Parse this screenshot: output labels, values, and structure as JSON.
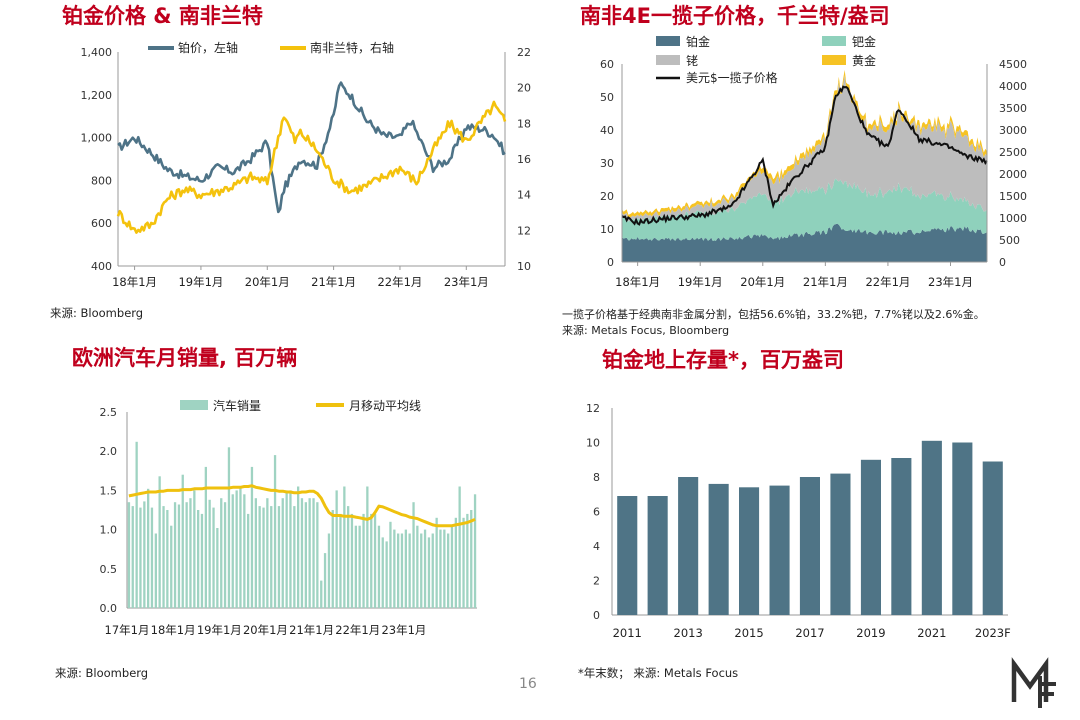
{
  "page_number": "16",
  "logo": "MF",
  "colors": {
    "title_red": "#c0001d",
    "platinum_blue": "#4e7387",
    "rand_yellow": "#f4c20d",
    "palladium_teal": "#8fd1bc",
    "rhodium_gray": "#bdbdbd",
    "gold_yellow": "#f6c324",
    "basket_black": "#111111",
    "sales_bar": "#9fd3c2",
    "ma_line": "#efc10e",
    "stock_bar": "#4f7486"
  },
  "panels": {
    "tl": {
      "title": "铂金价格 & 南非兰特",
      "source": "来源: Bloomberg",
      "legend": [
        {
          "label": "铂价，左轴",
          "color": "#4e7387"
        },
        {
          "label": "南非兰特，右轴",
          "color": "#f4c20d"
        }
      ],
      "x_ticks": [
        "18年1月",
        "19年1月",
        "20年1月",
        "21年1月",
        "22年1月",
        "23年1月"
      ],
      "y_left_ticks": [
        "1,400",
        "1,200",
        "1,000",
        "800",
        "600",
        "400"
      ],
      "y_right_ticks": [
        "22",
        "20",
        "18",
        "16",
        "14",
        "12",
        "10"
      ]
    },
    "tr": {
      "title": "南非4E一揽子价格，千兰特/盎司",
      "note_line1": "一揽子价格基于经典南非金属分割，包括56.6%铂，33.2%钯，7.7%铑以及2.6%金。",
      "note_line2": "来源: Metals Focus, Bloomberg",
      "legend": [
        {
          "label": "铂金",
          "color": "#4e7387"
        },
        {
          "label": "钯金",
          "color": "#8fd1bc"
        },
        {
          "label": "铑",
          "color": "#bdbdbd"
        },
        {
          "label": "黄金",
          "color": "#f6c324"
        },
        {
          "label": "美元$一揽子价格",
          "color": "#111111"
        }
      ],
      "x_ticks": [
        "18年1月",
        "19年1月",
        "20年1月",
        "21年1月",
        "22年1月",
        "23年1月"
      ],
      "y_left_ticks": [
        "60",
        "50",
        "40",
        "30",
        "20",
        "10",
        "0"
      ],
      "y_right_ticks": [
        "4500",
        "4000",
        "3500",
        "3000",
        "2500",
        "2000",
        "1500",
        "1000",
        "500",
        "0"
      ]
    },
    "bl": {
      "title": "欧洲汽车月销量, 百万辆",
      "source": "来源: Bloomberg",
      "legend": [
        {
          "label": "汽车销量",
          "color": "#9fd3c2"
        },
        {
          "label": "月移动平均线",
          "color": "#efc10e"
        }
      ],
      "x_ticks": [
        "17年1月",
        "18年1月",
        "19年1月",
        "20年1月",
        "21年1月",
        "22年1月",
        "23年1月"
      ],
      "y_ticks": [
        "2.5",
        "2.0",
        "1.5",
        "1.0",
        "0.5",
        "0.0"
      ]
    },
    "br": {
      "title": "铂金地上存量*，百万盎司",
      "source": "*年末数；  来源: Metals Focus",
      "x_ticks": [
        "2011",
        "2013",
        "2015",
        "2017",
        "2019",
        "2021",
        "2023F"
      ],
      "y_ticks": [
        "12",
        "10",
        "8",
        "6",
        "4",
        "2",
        "0"
      ]
    }
  },
  "chart_data": [
    {
      "id": "tl",
      "type": "line",
      "title": "铂金价格 & 南非兰特",
      "x_range": [
        "2017-10",
        "2023-08"
      ],
      "ylim_left": [
        400,
        1400
      ],
      "ylim_right": [
        10,
        22
      ],
      "series": [
        {
          "name": "铂价，左轴",
          "axis": "left",
          "x": [
            "2017-10",
            "2018-01",
            "2018-04",
            "2018-07",
            "2018-10",
            "2019-01",
            "2019-04",
            "2019-07",
            "2019-10",
            "2020-01",
            "2020-03",
            "2020-04",
            "2020-07",
            "2020-10",
            "2021-01",
            "2021-02",
            "2021-04",
            "2021-07",
            "2021-10",
            "2022-01",
            "2022-03",
            "2022-07",
            "2022-10",
            "2023-01",
            "2023-04",
            "2023-06",
            "2023-08"
          ],
          "values": [
            950,
            1000,
            930,
            850,
            820,
            800,
            860,
            840,
            900,
            980,
            640,
            760,
            900,
            870,
            1100,
            1250,
            1200,
            1080,
            1010,
            1000,
            1080,
            860,
            900,
            1050,
            1040,
            1010,
            930
          ]
        },
        {
          "name": "南非兰特，右轴",
          "axis": "right",
          "x": [
            "2017-10",
            "2018-01",
            "2018-04",
            "2018-07",
            "2018-10",
            "2019-01",
            "2019-04",
            "2019-07",
            "2019-10",
            "2020-01",
            "2020-04",
            "2020-06",
            "2020-07",
            "2020-10",
            "2021-01",
            "2021-04",
            "2021-07",
            "2021-10",
            "2022-01",
            "2022-04",
            "2022-07",
            "2022-10",
            "2023-01",
            "2023-04",
            "2023-06",
            "2023-08"
          ],
          "values": [
            13.0,
            12.0,
            12.3,
            13.8,
            14.3,
            14.0,
            14.2,
            14.5,
            15.0,
            14.7,
            18.5,
            17.0,
            17.5,
            16.5,
            14.9,
            14.2,
            14.5,
            15.0,
            15.5,
            14.7,
            16.5,
            18.0,
            17.0,
            18.2,
            19.0,
            18.1
          ]
        }
      ]
    },
    {
      "id": "tr",
      "type": "area",
      "title": "南非4E一揽子价格，千兰特/盎司",
      "x": [
        "2017-10",
        "2018-01",
        "2018-07",
        "2019-01",
        "2019-07",
        "2020-01",
        "2020-03",
        "2020-07",
        "2021-01",
        "2021-03",
        "2021-05",
        "2021-09",
        "2022-01",
        "2022-03",
        "2022-07",
        "2023-01",
        "2023-04",
        "2023-08"
      ],
      "ylim_left": [
        0,
        60
      ],
      "ylim_right": [
        0,
        4500
      ],
      "series": [
        {
          "name": "铂金",
          "stack": true,
          "values": [
            7,
            7,
            7,
            7,
            7,
            8,
            7,
            8,
            9,
            11,
            10,
            9,
            9,
            9,
            9,
            10,
            10,
            9
          ]
        },
        {
          "name": "钯金",
          "stack": true,
          "values": [
            6,
            6,
            7,
            8,
            9,
            13,
            11,
            13,
            13,
            13,
            14,
            12,
            12,
            14,
            11,
            10,
            8,
            7
          ]
        },
        {
          "name": "铑",
          "stack": true,
          "values": [
            1,
            1,
            1.5,
            2,
            3,
            7,
            6,
            8,
            15,
            27,
            30,
            20,
            19,
            22,
            20,
            20,
            20,
            16
          ]
        },
        {
          "name": "黄金",
          "stack": true,
          "values": [
            1,
            1,
            1,
            1,
            1,
            1.5,
            1.5,
            1.5,
            1.5,
            1.5,
            1.5,
            1.5,
            1.5,
            1.5,
            1.5,
            1.5,
            1.5,
            1.5
          ]
        },
        {
          "name": "美元$一揽子价格",
          "axis": "right",
          "values": [
            1000,
            900,
            1000,
            1050,
            1250,
            2300,
            1300,
            1900,
            2600,
            3800,
            4000,
            2900,
            2600,
            3500,
            2800,
            2600,
            2400,
            2300
          ]
        }
      ]
    },
    {
      "id": "bl",
      "type": "bar",
      "title": "欧洲汽车月销量, 百万辆",
      "x_start": "2017-01",
      "ylim": [
        0,
        2.5
      ],
      "series": [
        {
          "name": "汽车销量",
          "values": [
            1.35,
            1.3,
            2.12,
            1.28,
            1.36,
            1.52,
            1.28,
            0.95,
            1.68,
            1.3,
            1.25,
            1.05,
            1.35,
            1.32,
            1.7,
            1.35,
            1.4,
            1.5,
            1.25,
            1.2,
            1.8,
            1.38,
            1.28,
            1.02,
            1.4,
            1.35,
            2.05,
            1.45,
            1.5,
            1.55,
            1.45,
            1.2,
            1.8,
            1.4,
            1.3,
            1.28,
            1.4,
            1.3,
            1.95,
            1.3,
            1.4,
            1.5,
            1.5,
            1.3,
            1.55,
            1.4,
            1.35,
            1.4,
            1.4,
            1.35,
            0.35,
            0.7,
            0.95,
            1.25,
            1.5,
            1.2,
            1.55,
            1.3,
            1.2,
            1.05,
            1.05,
            1.2,
            1.55,
            1.2,
            1.2,
            1.05,
            0.9,
            0.85,
            1.1,
            1.0,
            0.95,
            0.95,
            1.0,
            0.95,
            1.35,
            1.05,
            0.95,
            1.0,
            0.9,
            0.95,
            1.15,
            1.0,
            1.0,
            0.95,
            1.05,
            1.15,
            1.55,
            1.15,
            1.2,
            1.25,
            1.45
          ]
        },
        {
          "name": "月移动平均线",
          "type": "line",
          "values": [
            1.43,
            1.44,
            1.45,
            1.46,
            1.47,
            1.48,
            1.48,
            1.48,
            1.49,
            1.49,
            1.5,
            1.5,
            1.5,
            1.5,
            1.51,
            1.51,
            1.51,
            1.52,
            1.52,
            1.52,
            1.53,
            1.53,
            1.53,
            1.53,
            1.53,
            1.53,
            1.53,
            1.54,
            1.54,
            1.54,
            1.55,
            1.55,
            1.56,
            1.54,
            1.53,
            1.52,
            1.51,
            1.5,
            1.5,
            1.49,
            1.49,
            1.48,
            1.48,
            1.47,
            1.47,
            1.48,
            1.48,
            1.49,
            1.49,
            1.46,
            1.4,
            1.3,
            1.22,
            1.18,
            1.18,
            1.18,
            1.17,
            1.17,
            1.17,
            1.16,
            1.15,
            1.14,
            1.13,
            1.15,
            1.22,
            1.3,
            1.29,
            1.27,
            1.25,
            1.23,
            1.21,
            1.19,
            1.18,
            1.16,
            1.15,
            1.14,
            1.12,
            1.1,
            1.08,
            1.06,
            1.05,
            1.05,
            1.05,
            1.05,
            1.05,
            1.06,
            1.07,
            1.08,
            1.09,
            1.11,
            1.13
          ]
        }
      ]
    },
    {
      "id": "br",
      "type": "bar",
      "title": "铂金地上存量*，百万盎司",
      "categories": [
        "2011",
        "2012",
        "2013",
        "2014",
        "2015",
        "2016",
        "2017",
        "2018",
        "2019",
        "2020",
        "2021",
        "2022",
        "2023F"
      ],
      "values": [
        6.9,
        6.9,
        8.0,
        7.6,
        7.4,
        7.5,
        8.0,
        8.2,
        9.0,
        9.1,
        10.1,
        10.0,
        8.9
      ],
      "ylim": [
        0,
        12
      ]
    }
  ]
}
